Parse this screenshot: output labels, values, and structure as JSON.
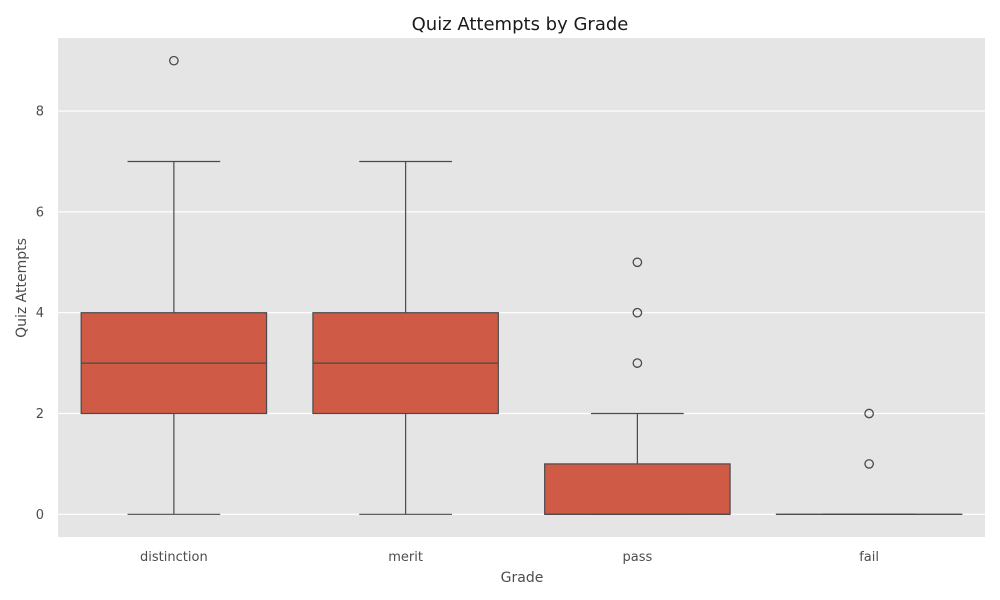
{
  "chart_data": {
    "type": "box",
    "title": "Quiz Attempts by Grade",
    "xlabel": "Grade",
    "ylabel": "Quiz Attempts",
    "categories": [
      "distinction",
      "merit",
      "pass",
      "fail"
    ],
    "ylim": [
      -0.45,
      9.45
    ],
    "yticks": [
      0,
      2,
      4,
      6,
      8
    ],
    "grid": true,
    "legend": "none",
    "colors": {
      "box_fill": "#cf5a46",
      "box_edge": "#4a4a4a",
      "plot_background": "#e5e5e5",
      "grid": "#ffffff"
    },
    "boxes": [
      {
        "category": "distinction",
        "whisker_low": 0,
        "q1": 2,
        "median": 3,
        "q3": 4,
        "whisker_high": 7,
        "outliers": [
          9
        ]
      },
      {
        "category": "merit",
        "whisker_low": 0,
        "q1": 2,
        "median": 3,
        "q3": 4,
        "whisker_high": 7,
        "outliers": []
      },
      {
        "category": "pass",
        "whisker_low": 0,
        "q1": 0,
        "median": 0,
        "q3": 1,
        "whisker_high": 2,
        "outliers": [
          3,
          4,
          5
        ]
      },
      {
        "category": "fail",
        "whisker_low": 0,
        "q1": 0,
        "median": 0,
        "q3": 0,
        "whisker_high": 0,
        "outliers": [
          1,
          2
        ]
      }
    ]
  }
}
